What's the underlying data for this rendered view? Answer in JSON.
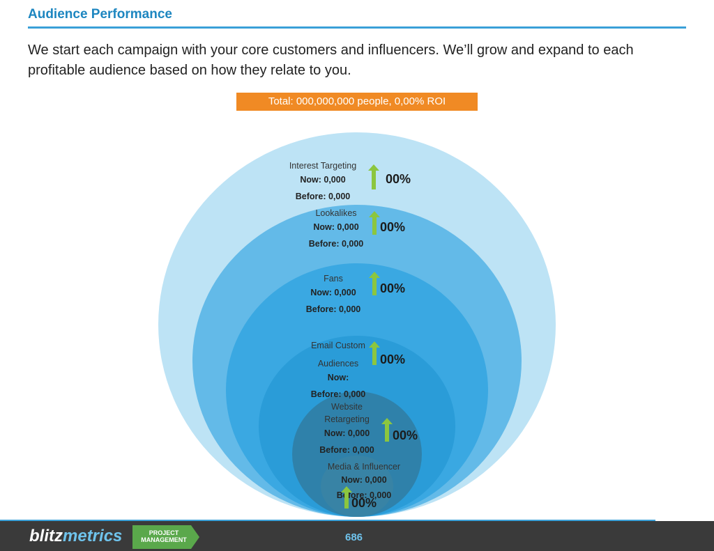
{
  "header": {
    "title": "Audience Performance"
  },
  "intro": "We start each campaign with your core customers and influencers. We’ll grow and expand to each profitable audience based on how they relate to you.",
  "total_banner": "Total: 000,000,000 people, 0,00% ROI",
  "colors": {
    "accent": "#1d86c0",
    "banner": "#f08a24",
    "arrow": "#8cc63f"
  },
  "segments": [
    {
      "name": "Interest Targeting",
      "now": "Now: 0,000",
      "before": "Before: 0,000",
      "change": "00%"
    },
    {
      "name": "Lookalikes",
      "now": "Now: 0,000",
      "before": "Before: 0,000",
      "change": "00%"
    },
    {
      "name": "Fans",
      "now": "Now: 0,000",
      "before": "Before: 0,000",
      "change": "00%"
    },
    {
      "name_line1": "Email Custom",
      "name_line2": "Audiences",
      "now": "Now:",
      "before": "Before: 0,000",
      "change": "00%"
    },
    {
      "name_line1": "Website",
      "name_line2": "Retargeting",
      "now": "Now: 0,000",
      "before": "Before: 0,000",
      "change": "00%"
    },
    {
      "name": "Media & Influencer",
      "now": "Now: 0,000",
      "before": "Before: 0,000",
      "change": "00%"
    }
  ],
  "footer": {
    "logo_part1": "blitz",
    "logo_part2": "metrics",
    "badge_line1": "PROJECT",
    "badge_line2": "MANAGEMENT",
    "page_number": "686"
  }
}
